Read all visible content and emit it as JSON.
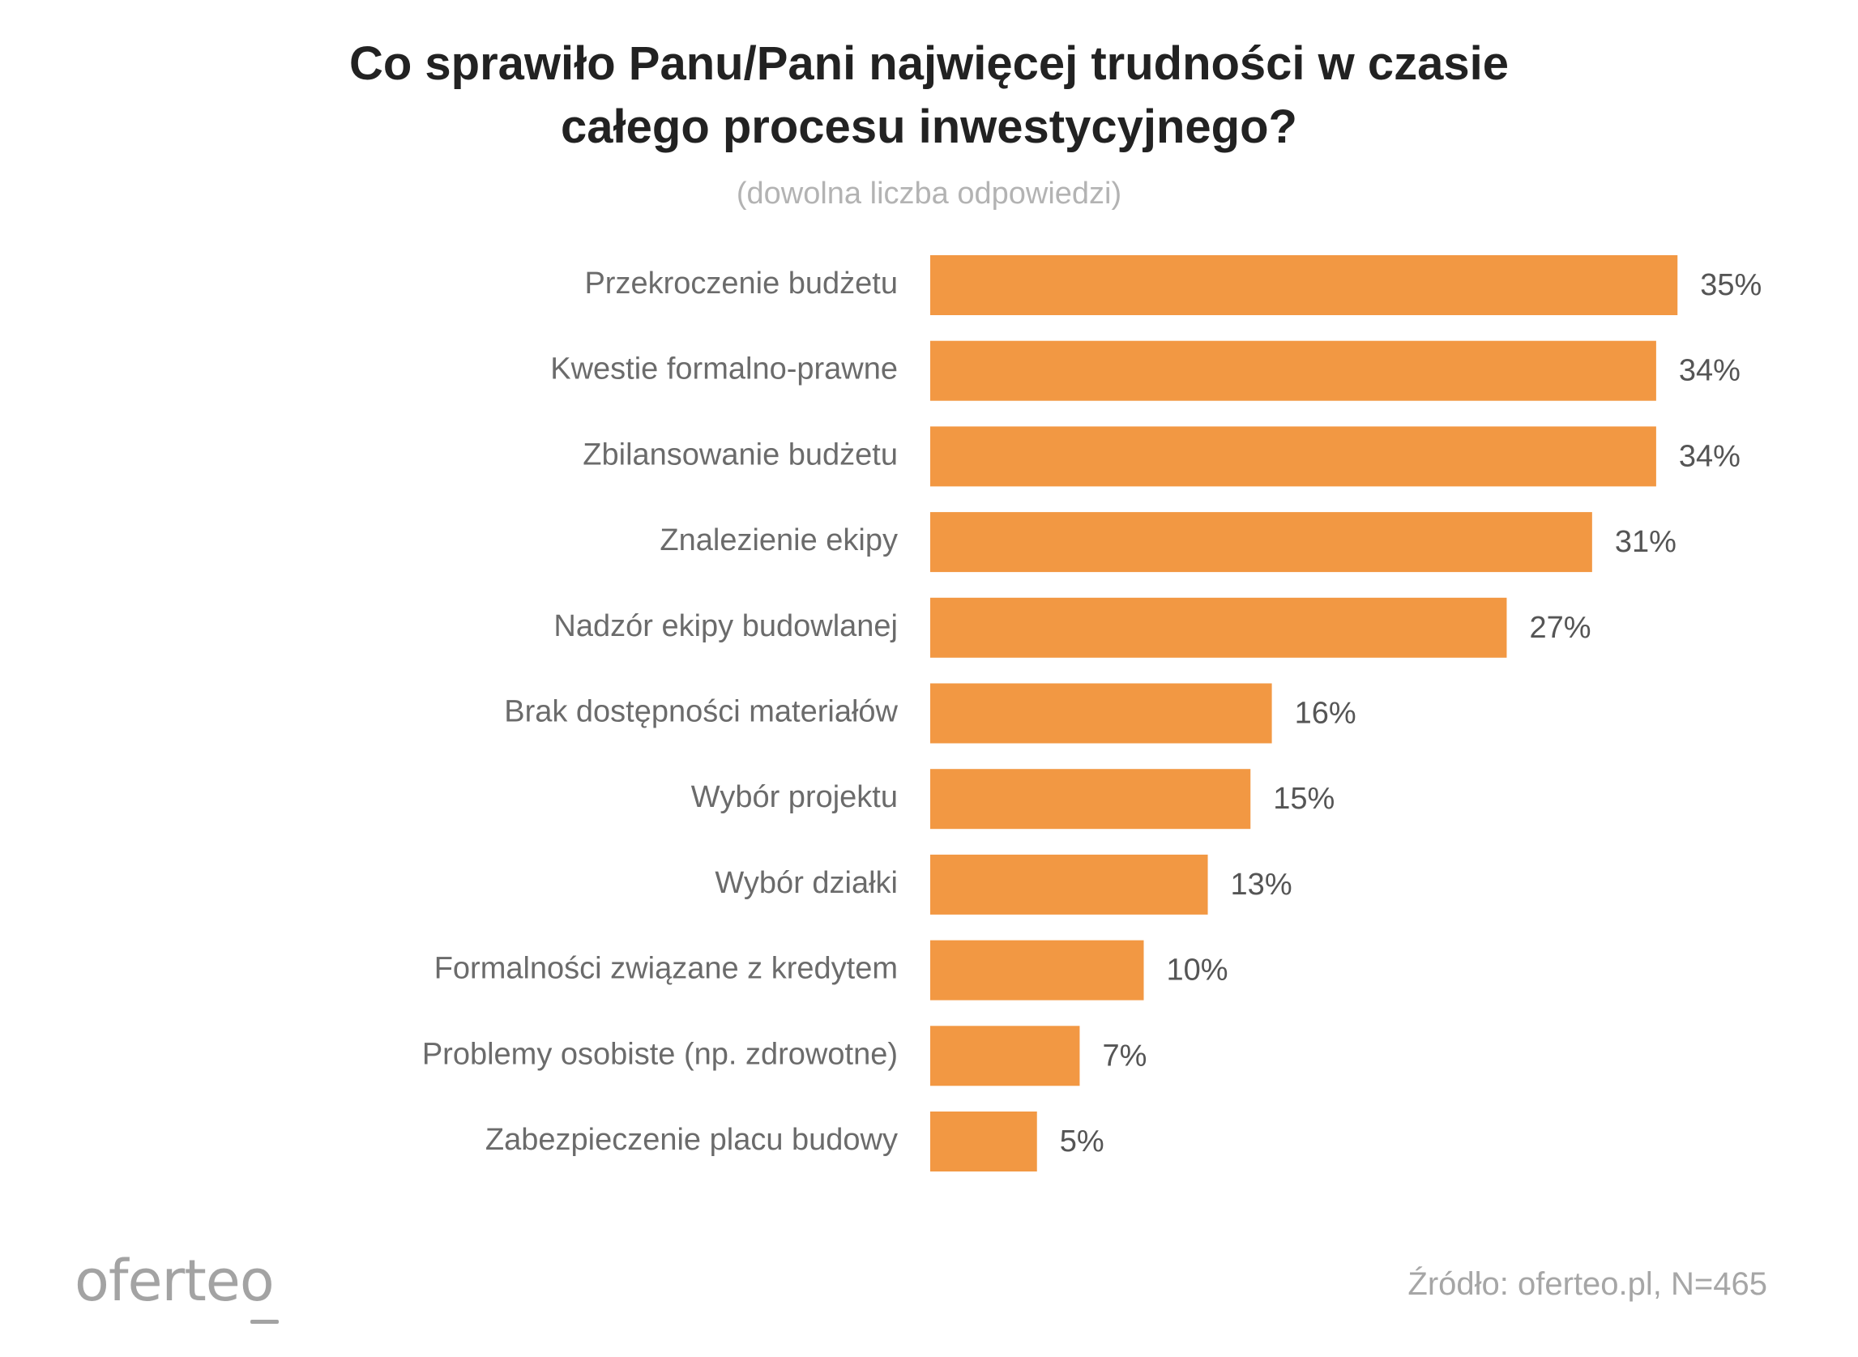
{
  "title": {
    "line1": "Co sprawiło Panu/Pani najwięcej trudności w czasie",
    "line2": "całego procesu inwestycyjnego?"
  },
  "subtitle": "(dowolna liczba odpowiedzi)",
  "footer": {
    "logo_text": "oferteo",
    "source": "Źródło: oferteo.pl, N=465"
  },
  "colors": {
    "bar": "#F29843",
    "category_label": "#6b6b6b",
    "value_label": "#555555"
  },
  "chart_data": {
    "type": "bar",
    "orientation": "horizontal",
    "categories": [
      "Przekroczenie budżetu",
      "Kwestie formalno-prawne",
      "Zbilansowanie budżetu",
      "Znalezienie ekipy",
      "Nadzór ekipy budowlanej",
      "Brak dostępności materiałów",
      "Wybór projektu",
      "Wybór działki",
      "Formalności związane z kredytem",
      "Problemy osobiste (np. zdrowotne)",
      "Zabezpieczenie placu budowy"
    ],
    "values": [
      35,
      34,
      34,
      31,
      27,
      16,
      15,
      13,
      10,
      7,
      5
    ],
    "value_labels": [
      "35%",
      "34%",
      "34%",
      "31%",
      "27%",
      "16%",
      "15%",
      "13%",
      "10%",
      "7%",
      "5%"
    ],
    "unit": "%",
    "grid": false,
    "legend": "none"
  }
}
